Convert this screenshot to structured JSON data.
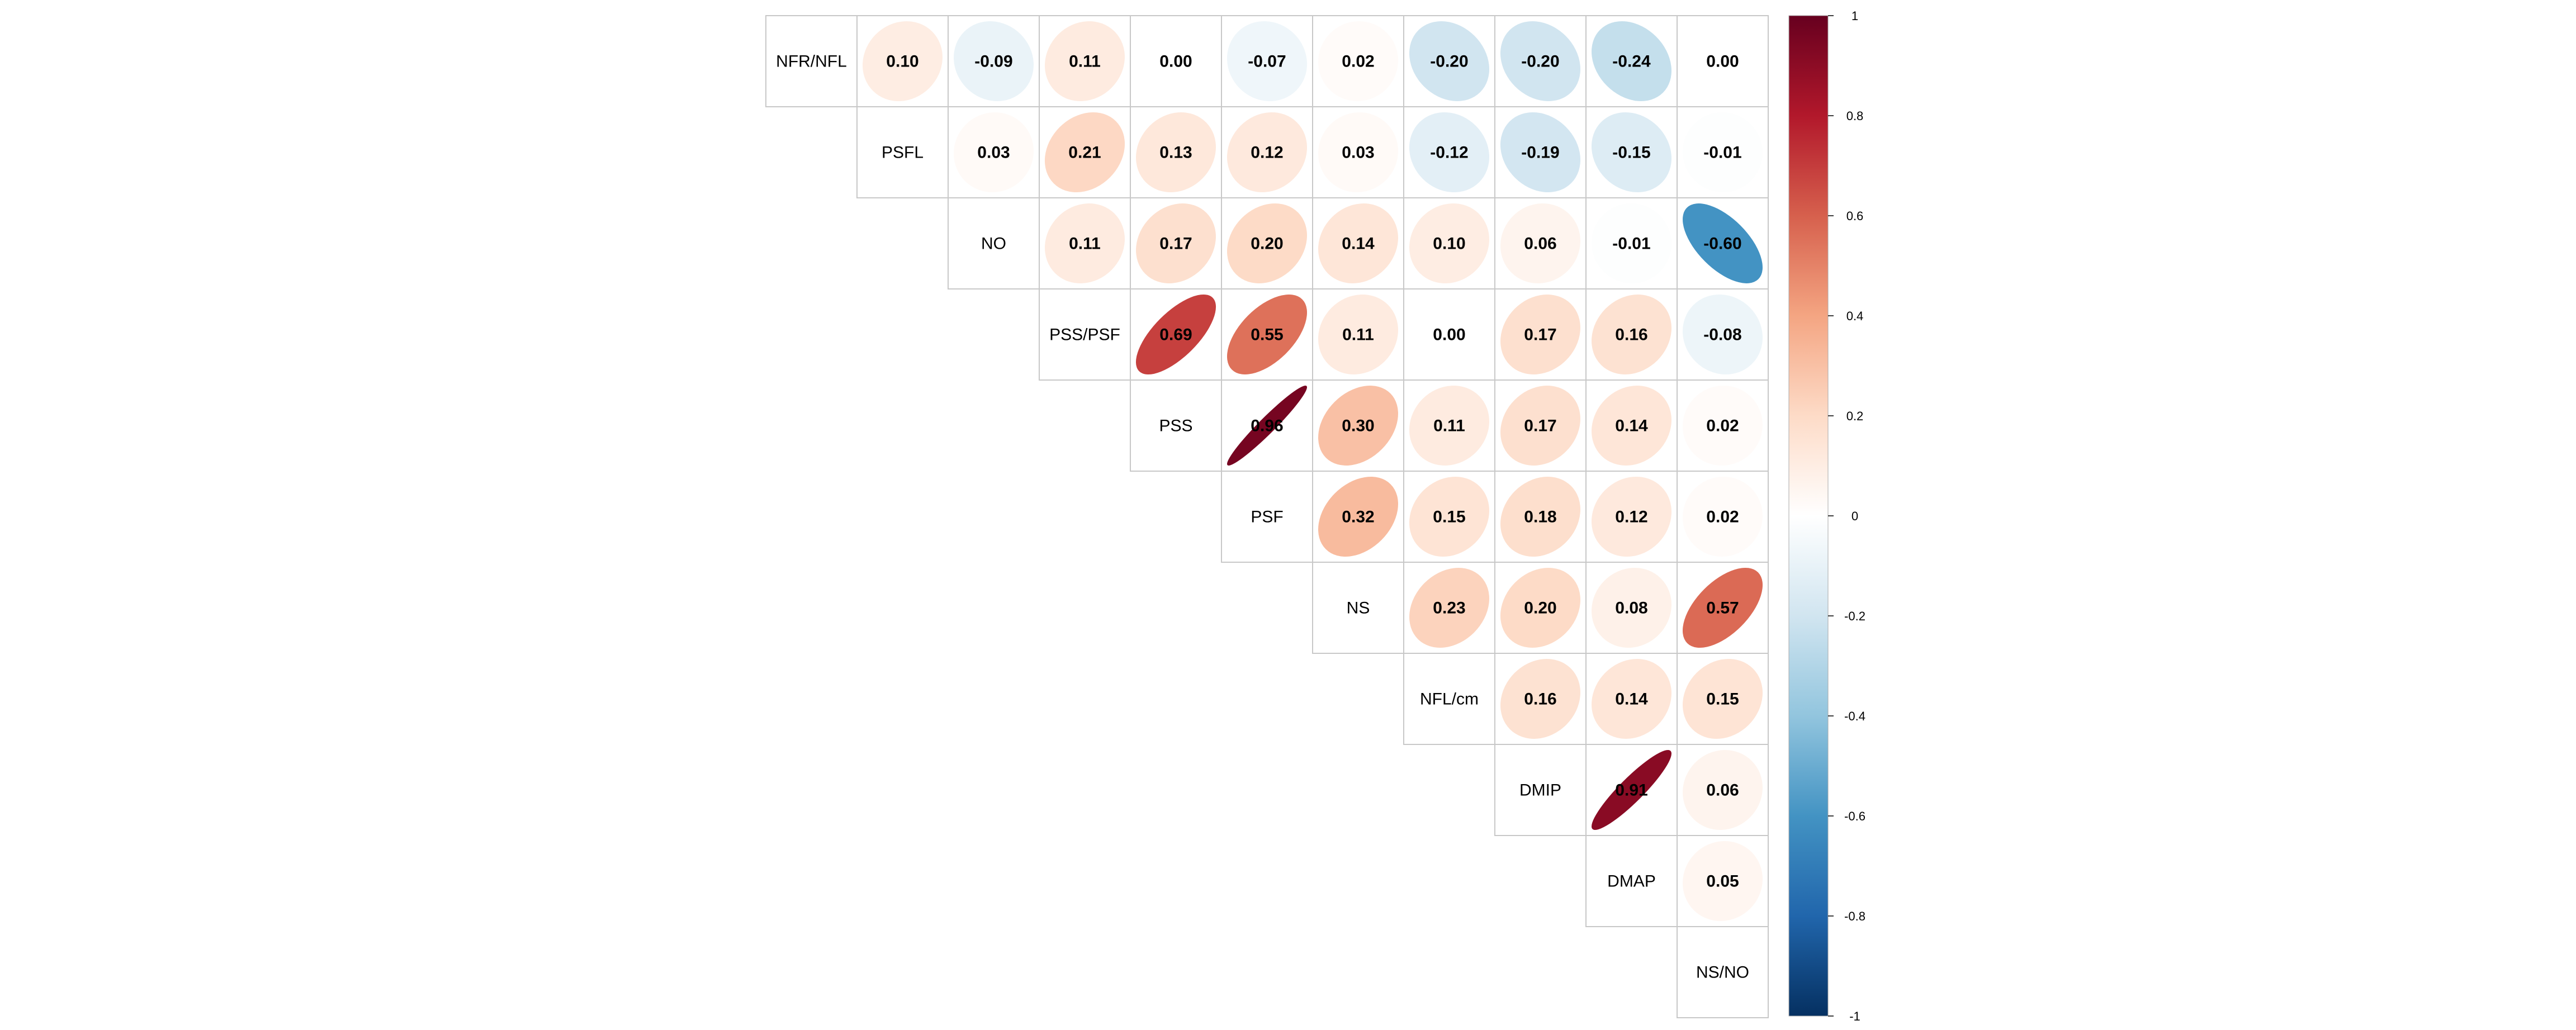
{
  "chart_data": {
    "type": "heatmap",
    "style": "correlation-ellipse-upper-triangle",
    "variables": [
      "NFR/NFL",
      "PSFL",
      "NO",
      "PSS/PSF",
      "PSS",
      "PSF",
      "NS",
      "NFL/cm",
      "DMIP",
      "DMAP",
      "NS/NO"
    ],
    "upper_triangle": [
      [
        0.1,
        -0.09,
        0.11,
        0.0,
        -0.07,
        0.02,
        -0.2,
        -0.2,
        -0.24,
        0.0
      ],
      [
        0.03,
        0.21,
        0.13,
        0.12,
        0.03,
        -0.12,
        -0.19,
        -0.15,
        -0.01
      ],
      [
        0.11,
        0.17,
        0.2,
        0.14,
        0.1,
        0.06,
        -0.01,
        -0.6
      ],
      [
        0.69,
        0.55,
        0.11,
        0.0,
        0.17,
        0.16,
        -0.08
      ],
      [
        0.96,
        0.3,
        0.11,
        0.17,
        0.14,
        0.02
      ],
      [
        0.32,
        0.15,
        0.18,
        0.12,
        0.02
      ],
      [
        0.23,
        0.2,
        0.08,
        0.57
      ],
      [
        0.16,
        0.14,
        0.15
      ],
      [
        0.91,
        0.06
      ],
      [
        0.05
      ]
    ],
    "colorbar": {
      "range": [
        -1,
        1
      ],
      "ticks": [
        "1",
        "0.8",
        "0.6",
        "0.4",
        "0.2",
        "0",
        "-0.2",
        "-0.4",
        "-0.6",
        "-0.8",
        "-1"
      ],
      "colors": [
        "#67001F",
        "#B2182B",
        "#D6604D",
        "#F4A582",
        "#FDDBC7",
        "#FFFFFF",
        "#D1E5F0",
        "#92C5DE",
        "#4393C3",
        "#2166AC",
        "#053061"
      ]
    }
  }
}
